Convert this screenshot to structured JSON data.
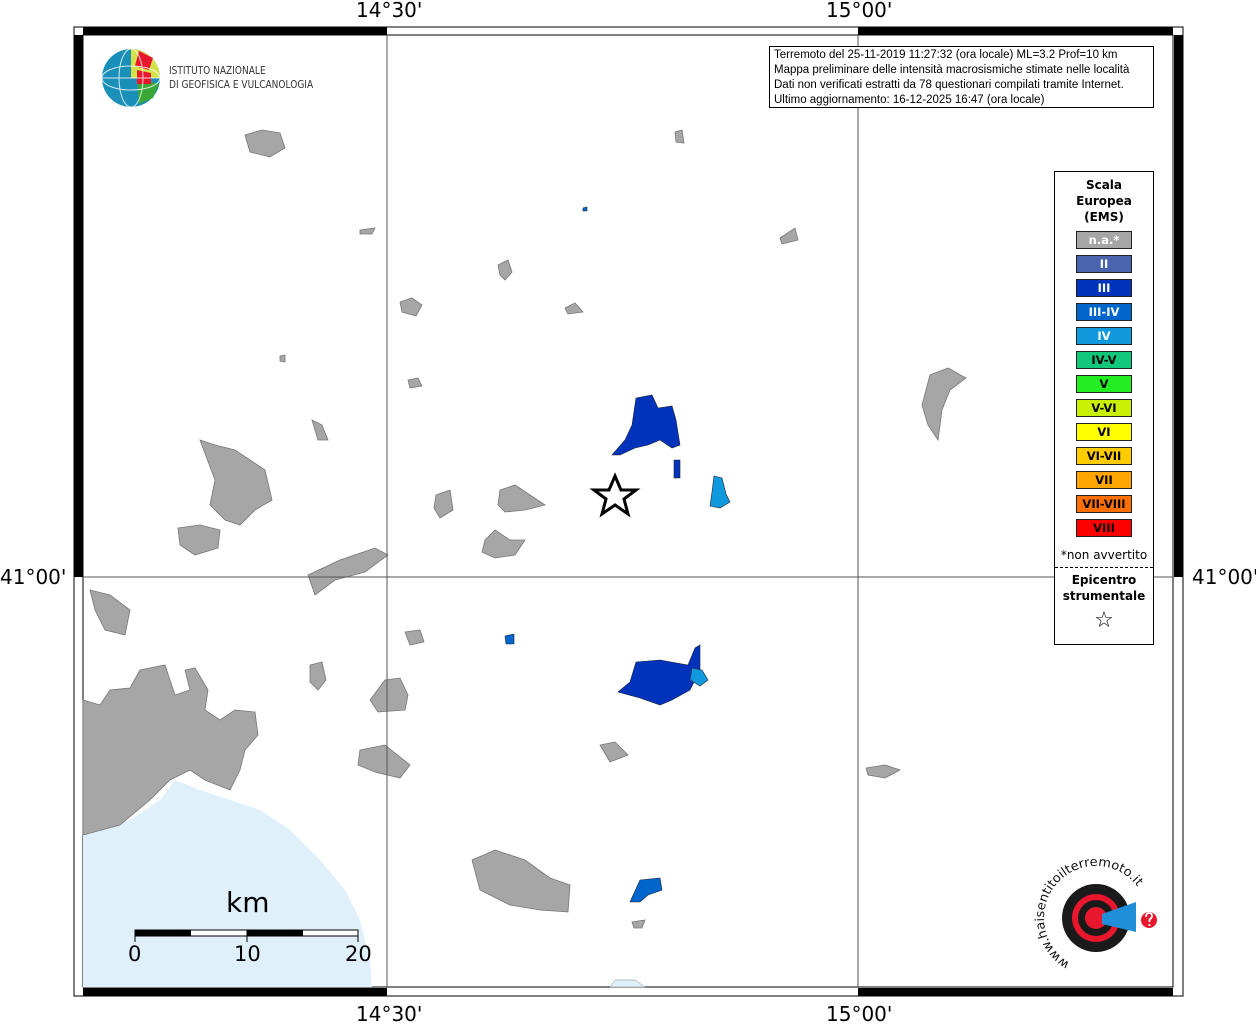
{
  "map": {
    "longitude_labels": [
      "14°30'",
      "15°00'"
    ],
    "latitude_labels": [
      "41°00'"
    ],
    "colors": {
      "land_na": "#a6a6a6",
      "sea": "#e0f0fb",
      "intensity_III": "#0033bb",
      "intensity_III_IV": "#0066cc",
      "intensity_IV": "#1199dd"
    }
  },
  "logo": {
    "line1": "ISTITUTO NAZIONALE",
    "line2": "DI GEOFISICA E VULCANOLOGIA"
  },
  "info_box": {
    "line1": "Terremoto del 25-11-2019 11:27:32 (ora locale) ML=3.2 Prof=10 km",
    "line2": "Mappa preliminare delle intensità macrosismiche stimate nelle località",
    "line3": "Dati non verificati estratti da 78 questionari compilati tramite Internet.",
    "line4": "Ultimo aggiornamento: 16-12-2025 16:47 (ora locale)"
  },
  "legend": {
    "title_lines": [
      "Scala",
      "Europea",
      "(EMS)"
    ],
    "items": [
      {
        "label": "n.a.*",
        "color": "#a6a6a6",
        "text_color": "#ffffff"
      },
      {
        "label": "II",
        "color": "#4a64ad",
        "text_color": "#ffffff"
      },
      {
        "label": "III",
        "color": "#0033bb",
        "text_color": "#ffffff"
      },
      {
        "label": "III-IV",
        "color": "#0066cc",
        "text_color": "#ffffff"
      },
      {
        "label": "IV",
        "color": "#1199dd",
        "text_color": "#ffffff"
      },
      {
        "label": "IV-V",
        "color": "#11c87a",
        "text_color": "#000000"
      },
      {
        "label": "V",
        "color": "#22ee22",
        "text_color": "#000000"
      },
      {
        "label": "V-VI",
        "color": "#c8f000",
        "text_color": "#000000"
      },
      {
        "label": "VI",
        "color": "#ffff00",
        "text_color": "#000000"
      },
      {
        "label": "VI-VII",
        "color": "#ffcc00",
        "text_color": "#000000"
      },
      {
        "label": "VII",
        "color": "#ffa500",
        "text_color": "#000000"
      },
      {
        "label": "VII-VIII",
        "color": "#ff7000",
        "text_color": "#000000"
      },
      {
        "label": "VIII",
        "color": "#ff0000",
        "text_color": "#000000"
      }
    ],
    "na_note": "*non avvertito",
    "epicenter_lines": [
      "Epicentro",
      "strumentale"
    ],
    "epicenter_symbol": "☆"
  },
  "scale_bar": {
    "unit": "km",
    "ticks": [
      "0",
      "10",
      "20"
    ]
  },
  "haisentito_logo": {
    "text": "www.haisentitoilterremoto.it"
  }
}
